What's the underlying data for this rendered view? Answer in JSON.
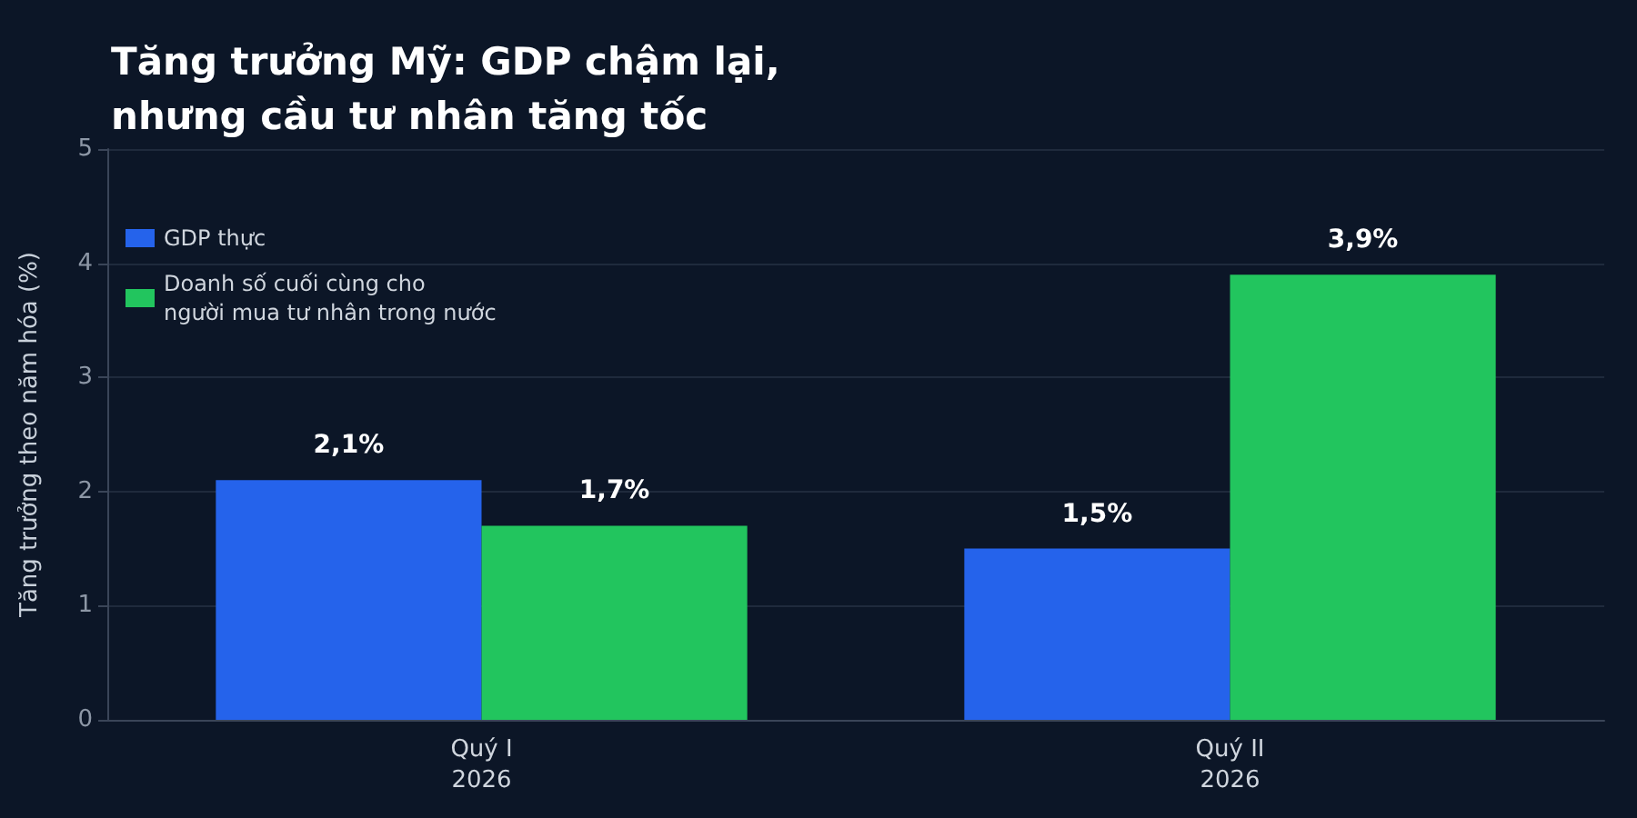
{
  "chart_data": {
    "type": "bar",
    "title": "Tăng trưởng Mỹ: GDP chậm lại,\nnhưng cầu tư nhân tăng tốc",
    "ylabel": "Tăng trưởng theo năm hóa (%)",
    "categories": [
      "Quý I\n2026",
      "Quý II\n2026"
    ],
    "series": [
      {
        "name": "GDP thực",
        "color": "#2563eb",
        "values": [
          2.1,
          1.5
        ],
        "value_labels": [
          "2,1%",
          "1,5%"
        ]
      },
      {
        "name": "Doanh số cuối cùng cho\nngười mua tư nhân trong nước",
        "color": "#22c55e",
        "values": [
          1.7,
          3.9
        ],
        "value_labels": [
          "1,7%",
          "3,9%"
        ]
      }
    ],
    "ylim": [
      0,
      5
    ],
    "yticks": [
      0,
      1,
      2,
      3,
      4,
      5
    ],
    "grid": "y",
    "legend": "top left"
  }
}
